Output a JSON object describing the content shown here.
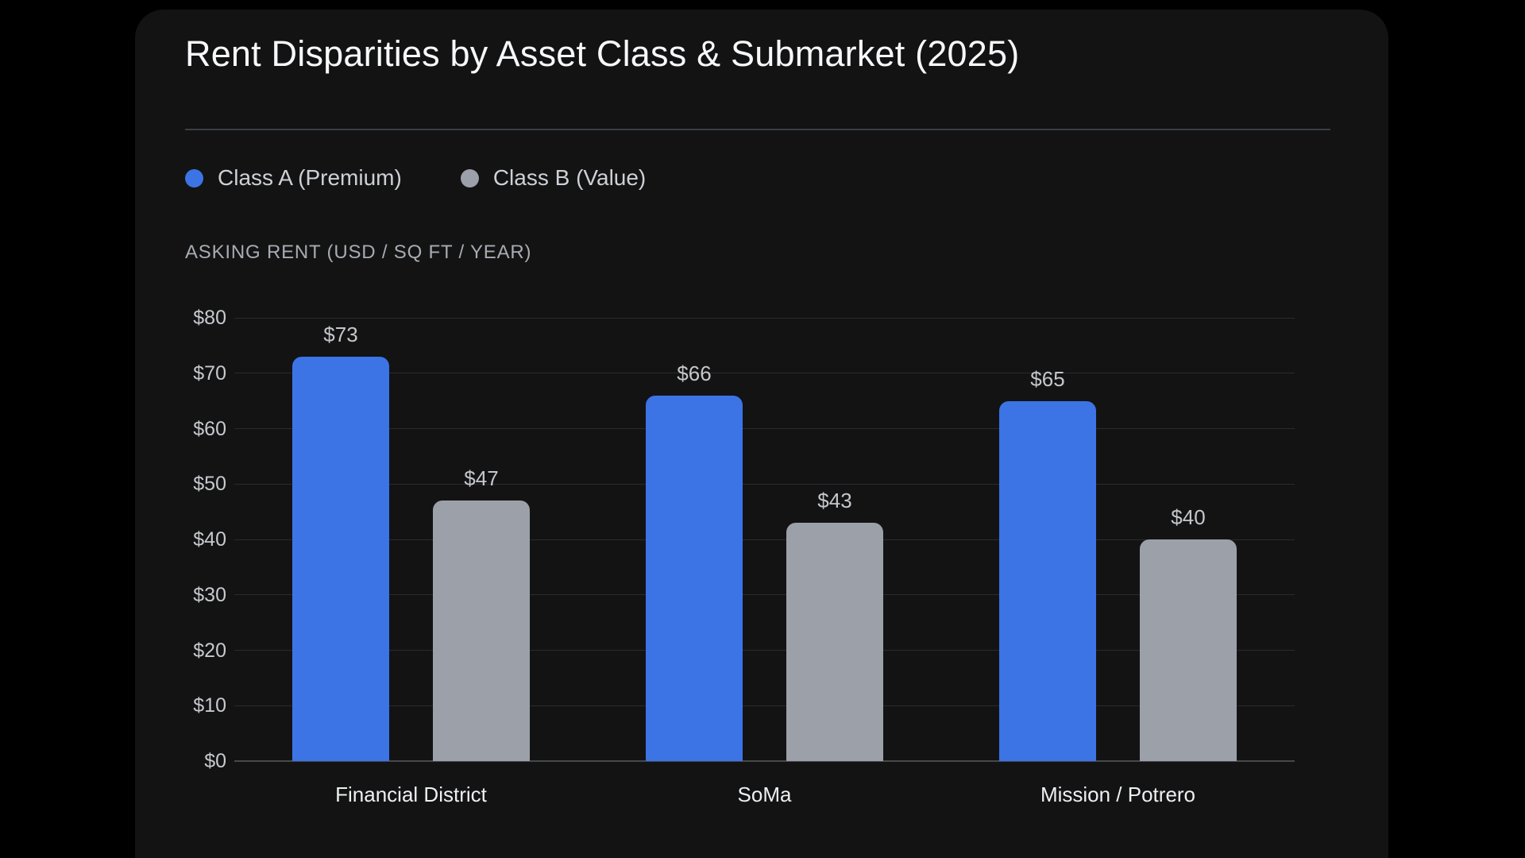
{
  "card": {
    "title": "Rent Disparities by Asset Class & Submarket (2025)"
  },
  "colors": {
    "page_background": "#000000",
    "card_background": "#131314",
    "class_a_blue": "#3C74E6",
    "class_b_gray": "#9CA0A8",
    "gridline": "#2A2B2E",
    "baseline": "#45484C"
  },
  "chart_data": {
    "type": "bar",
    "title": "Rent Disparities by Asset Class & Submarket (2025)",
    "ylabel": "ASKING RENT (USD / SQ FT / YEAR)",
    "xlabel": "",
    "categories": [
      "Financial District",
      "SoMa",
      "Mission / Potrero"
    ],
    "series": [
      {
        "name": "Class A (Premium)",
        "color": "#3C74E6",
        "values": [
          73,
          66,
          65
        ],
        "labels": [
          "$73",
          "$66",
          "$65"
        ]
      },
      {
        "name": "Class B (Value)",
        "color": "#9CA0A8",
        "values": [
          47,
          43,
          40
        ],
        "labels": [
          "$47",
          "$43",
          "$40"
        ]
      }
    ],
    "ylim": [
      0,
      80
    ],
    "ytick_step": 10,
    "ytick_labels": [
      "$0",
      "$10",
      "$20",
      "$30",
      "$40",
      "$50",
      "$60",
      "$70",
      "$80"
    ],
    "grid": true,
    "legend_position": "top-left"
  }
}
